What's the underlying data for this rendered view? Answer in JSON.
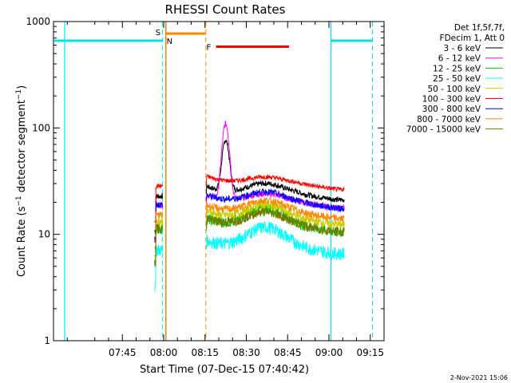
{
  "chart_data": {
    "type": "line",
    "title": "RHESSI Count Rates",
    "xlabel": "Start Time (07-Dec-15 07:40:42)",
    "ylabel_main": "Count Rate (s",
    "ylabel_sup1": "−1",
    "ylabel_mid": " detector segment",
    "ylabel_sup2": "−1",
    "ylabel_end": ")",
    "y_scale": "log",
    "ylim": [
      1,
      1000
    ],
    "y_ticks": [
      {
        "value": 1,
        "label": "1"
      },
      {
        "value": 10,
        "label": "10"
      },
      {
        "value": 100,
        "label": "100"
      },
      {
        "value": 1000,
        "label": "1000"
      }
    ],
    "xlim_minutes": [
      440,
      560
    ],
    "x_ticks": [
      {
        "minute": 465,
        "label": "07:45"
      },
      {
        "minute": 480,
        "label": "08:00"
      },
      {
        "minute": 495,
        "label": "08:15"
      },
      {
        "minute": 510,
        "label": "08:30"
      },
      {
        "minute": 525,
        "label": "08:45"
      },
      {
        "minute": 540,
        "label": "09:00"
      },
      {
        "minute": 555,
        "label": "09:15"
      }
    ],
    "legend_header": [
      "Det 1f,5f,7f,",
      "FDecim 1, Att 0"
    ],
    "series": [
      {
        "name": "3 - 6 keV",
        "color": "#000000",
        "base": 24,
        "peak": 75
      },
      {
        "name": "6 - 12 keV",
        "color": "#ff00ff",
        "base": 20,
        "peak": 108
      },
      {
        "name": "12 - 25 keV",
        "color": "#00cc00",
        "base": 12,
        "peak": 0
      },
      {
        "name": "25 - 50 keV",
        "color": "#00ffff",
        "base": 7.5,
        "peak": 0
      },
      {
        "name": "50 - 100 keV",
        "color": "#cccc00",
        "base": 14,
        "peak": 0
      },
      {
        "name": "100 - 300 keV",
        "color": "#ff0000",
        "base": 30,
        "peak": 0
      },
      {
        "name": "300 - 800 keV",
        "color": "#0000ff",
        "base": 20,
        "peak": 0
      },
      {
        "name": "800 - 7000 keV",
        "color": "#ff8800",
        "base": 16,
        "peak": 0
      },
      {
        "name": "7000 - 15000 keV",
        "color": "#777700",
        "base": 12,
        "peak": 0
      }
    ],
    "data_windows_minutes": [
      [
        476.7,
        479.6
      ],
      [
        495.5,
        545.6
      ]
    ],
    "saa_start_minute": 480.8,
    "night_windows": [
      {
        "label": "N",
        "start": 479.6,
        "end": 540.7
      },
      {
        "label": "",
        "start": 540.7,
        "end": 555.8
      }
    ],
    "annotations": [
      {
        "label": "S",
        "color": "#ff8800",
        "start": 480.8,
        "end": 495.3
      },
      {
        "label": "F",
        "color": "#ff0000",
        "start": 499.0,
        "end": 525.5
      }
    ],
    "timestamp": "2-Nov-2021 15:06",
    "colors": {
      "night": "#00e5ee",
      "saa": "#ff8800",
      "flare": "#ff0000"
    }
  }
}
